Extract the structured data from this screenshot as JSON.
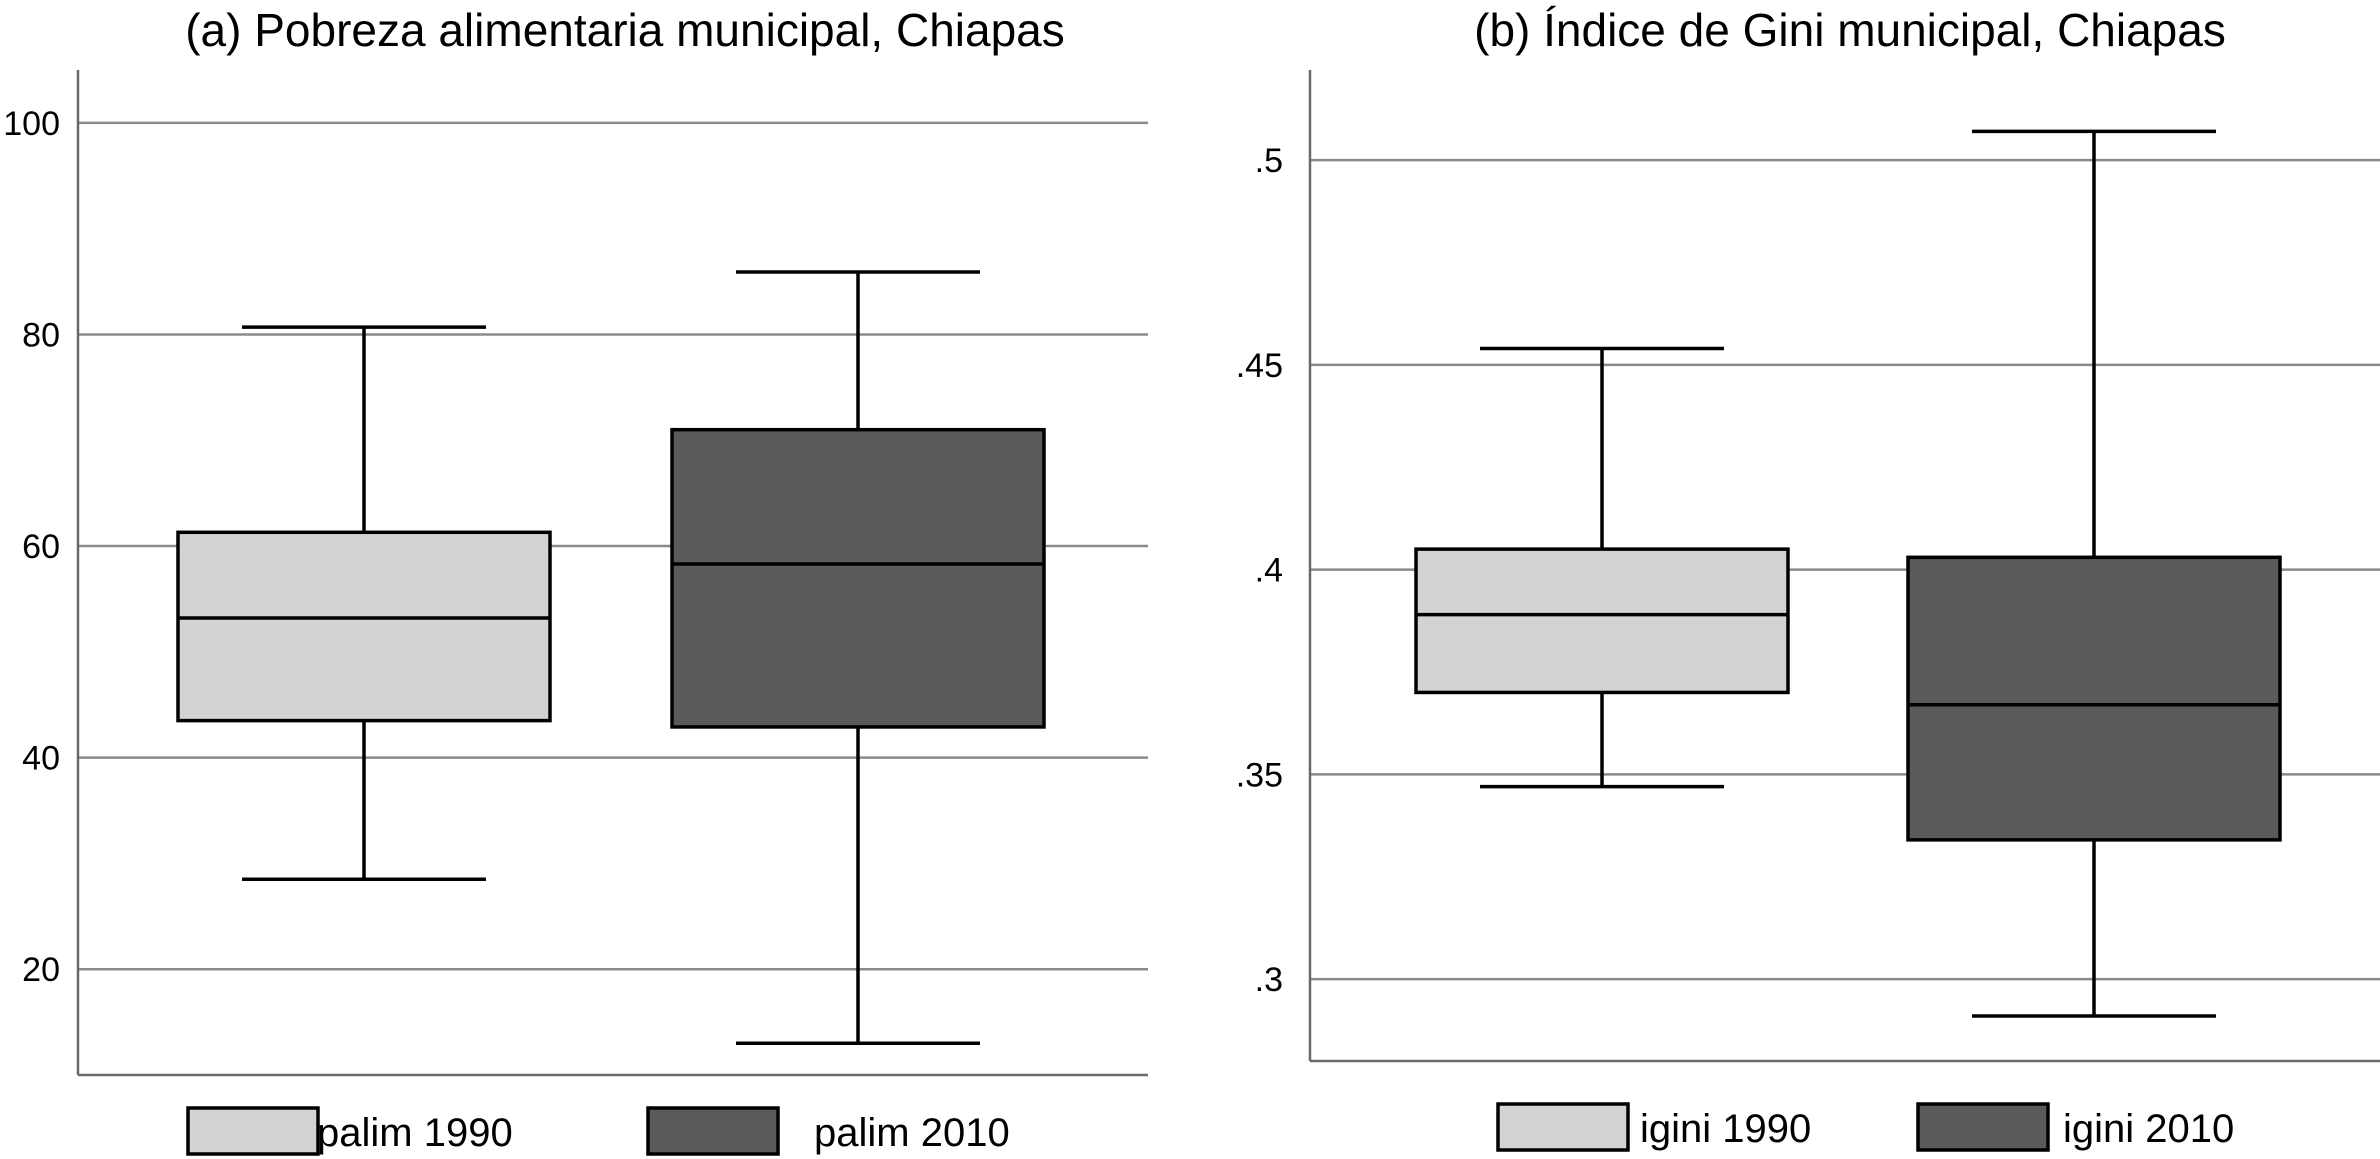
{
  "chart_data": [
    {
      "type": "box",
      "title": "(a) Pobreza alimentaria municipal, Chiapas",
      "ylim": [
        10,
        105
      ],
      "yticks": [
        20,
        40,
        60,
        80,
        100
      ],
      "ytick_labels": [
        "20",
        "40",
        "60",
        "80",
        "100"
      ],
      "grid": true,
      "legend_position": "bottom",
      "series": [
        {
          "name": "palim 1990",
          "color": "#d3d3d3",
          "whisker_low": 28.5,
          "q1": 43.5,
          "median": 53.2,
          "q3": 61.3,
          "whisker_high": 80.7
        },
        {
          "name": "palim 2010",
          "color": "#5a5a5a",
          "whisker_low": 13.0,
          "q1": 42.9,
          "median": 58.3,
          "q3": 71.0,
          "whisker_high": 85.9
        }
      ]
    },
    {
      "type": "box",
      "title": "(b) Índice de Gini municipal, Chiapas",
      "ylim": [
        0.28,
        0.522
      ],
      "yticks": [
        0.3,
        0.35,
        0.4,
        0.45,
        0.5
      ],
      "ytick_labels": [
        ".3",
        ".35",
        ".4",
        ".45",
        ".5"
      ],
      "grid": true,
      "legend_position": "bottom",
      "series": [
        {
          "name": "igini 1990",
          "color": "#d3d3d3",
          "whisker_low": 0.347,
          "q1": 0.37,
          "median": 0.389,
          "q3": 0.405,
          "whisker_high": 0.454
        },
        {
          "name": "igini 2010",
          "color": "#5a5a5a",
          "whisker_low": 0.291,
          "q1": 0.334,
          "median": 0.367,
          "q3": 0.403,
          "whisker_high": 0.507
        }
      ]
    }
  ]
}
